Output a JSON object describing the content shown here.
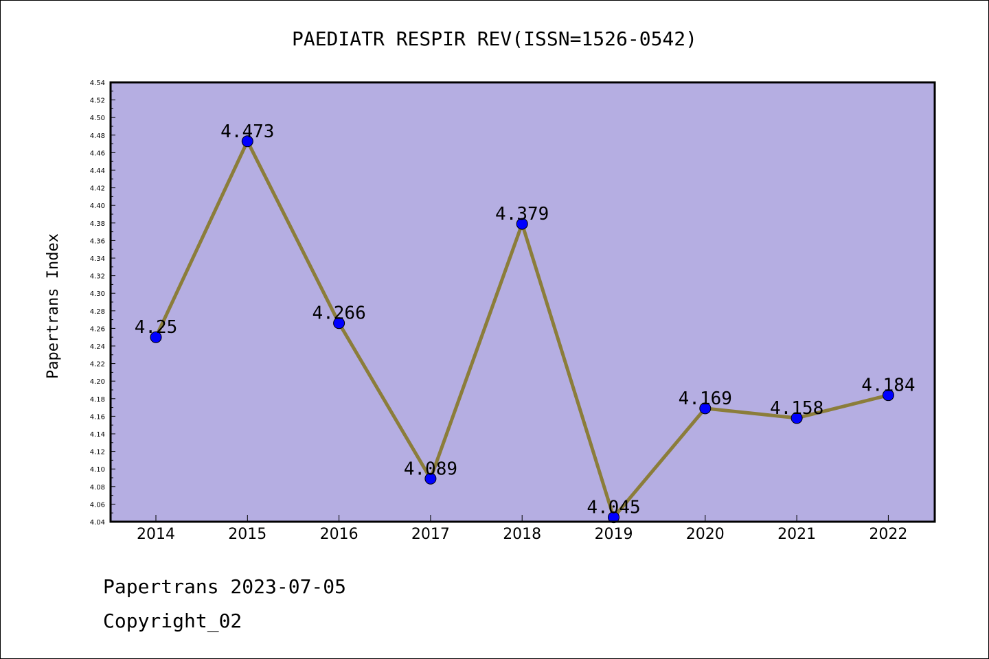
{
  "chart_data": {
    "type": "line",
    "title": "PAEDIATR RESPIR REV(ISSN=1526-0542)",
    "ylabel": "Papertrans Index",
    "xlabel": "",
    "categories": [
      "2014",
      "2015",
      "2016",
      "2017",
      "2018",
      "2019",
      "2020",
      "2021",
      "2022"
    ],
    "values": [
      4.25,
      4.473,
      4.266,
      4.089,
      4.379,
      4.045,
      4.169,
      4.158,
      4.184
    ],
    "data_labels": [
      "4.25",
      "4.473",
      "4.266",
      "4.089",
      "4.379",
      "4.045",
      "4.169",
      "4.158",
      "4.184"
    ],
    "ylim": [
      4.04,
      4.54
    ],
    "yticks": [
      "4.04",
      "4.06",
      "4.08",
      "4.10",
      "4.12",
      "4.14",
      "4.16",
      "4.18",
      "4.20",
      "4.22",
      "4.24",
      "4.26",
      "4.28",
      "4.30",
      "4.32",
      "4.34",
      "4.36",
      "4.38",
      "4.40",
      "4.42",
      "4.44",
      "4.46",
      "4.48",
      "4.50",
      "4.52",
      "4.54"
    ],
    "grid": false,
    "colors": {
      "plot_background": "#b5aee2",
      "line": "#8b7d3a",
      "marker": "#0000ff"
    }
  },
  "footer": {
    "line1": "Papertrans 2023-07-05",
    "line2": "Copyright_02"
  }
}
